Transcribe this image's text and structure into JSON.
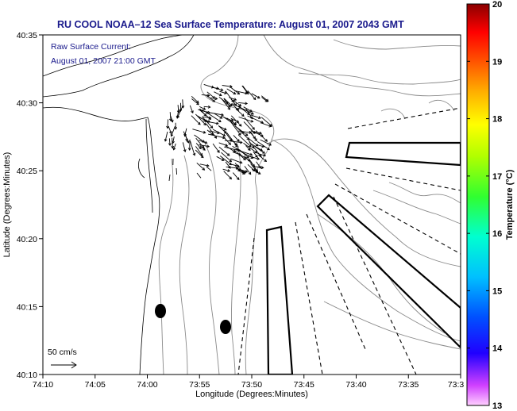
{
  "title": "RU COOL  NOAA–12  Sea Surface Temperature:  August 01, 2007 2043 GMT",
  "annotation": {
    "line1": "Raw Surface Current:",
    "line2": "August 01, 2007 21:00 GMT"
  },
  "scale_label": "50 cm/s",
  "x_axis": {
    "label": "Longitude (Degrees:Minutes)",
    "ticks": [
      "74:10",
      "74:05",
      "74:00",
      "73:55",
      "73:50",
      "73:45",
      "73:40",
      "73:35",
      "73:3"
    ]
  },
  "y_axis": {
    "label": "Latitude (Degrees:Minutes)",
    "ticks": [
      "40:10",
      "40:15",
      "40:20",
      "40:25",
      "40:30",
      "40:35"
    ]
  },
  "colorbar": {
    "label": "Temperature (°C)",
    "ticks": [
      "13",
      "14",
      "15",
      "16",
      "17",
      "18",
      "19",
      "20"
    ],
    "min": 13,
    "max": 20,
    "colors": [
      "#ff80ff",
      "#a000ff",
      "#0000ff",
      "#0080ff",
      "#00ffff",
      "#00ff80",
      "#40ff00",
      "#c0ff00",
      "#ffff00",
      "#ffa000",
      "#ff4000",
      "#ff0000",
      "#8b0000"
    ]
  },
  "map": {
    "lon_range": [
      -74.1667,
      -73.5
    ],
    "lat_range": [
      40.1667,
      40.5833
    ],
    "colors": {
      "contour": "#8a8a8a",
      "coast": "#000000",
      "vectors": "#000000"
    }
  }
}
